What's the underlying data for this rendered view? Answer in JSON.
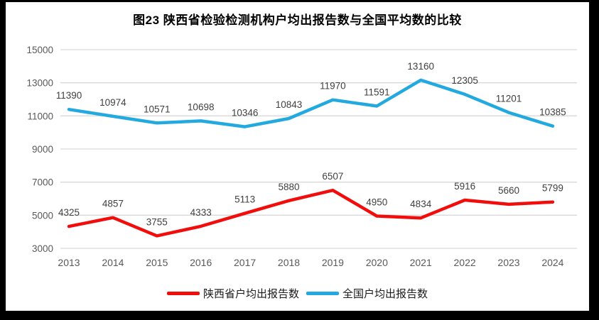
{
  "chart_data": {
    "type": "line",
    "title": "图23 陕西省检验检测机构户均出报告数与全国平均数的比较",
    "categories": [
      "2013",
      "2014",
      "2015",
      "2016",
      "2017",
      "2018",
      "2019",
      "2020",
      "2021",
      "2022",
      "2023",
      "2024"
    ],
    "series": [
      {
        "name": "陕西省户均出报告数",
        "color": "#f20d0d",
        "values": [
          4325,
          4857,
          3755,
          4333,
          5113,
          5880,
          6507,
          4950,
          4834,
          5916,
          5660,
          5799
        ]
      },
      {
        "name": "全国户均出报告数",
        "color": "#22a9e0",
        "values": [
          11390,
          10974,
          10571,
          10698,
          10346,
          10843,
          11970,
          11591,
          13160,
          12305,
          11201,
          10385
        ]
      }
    ],
    "ylim": [
      3000,
      15000
    ],
    "y_ticks": [
      3000,
      5000,
      7000,
      9000,
      11000,
      13000,
      15000
    ],
    "grid": "horizontal",
    "legend_position": "bottom",
    "data_labels": "above"
  },
  "colors": {
    "frame_border": "#000000",
    "plot_background": "#ffffff",
    "gridline": "#d9d9d9",
    "axis_text": "#595959",
    "data_label_text": "#404040",
    "title_text": "#000000"
  }
}
